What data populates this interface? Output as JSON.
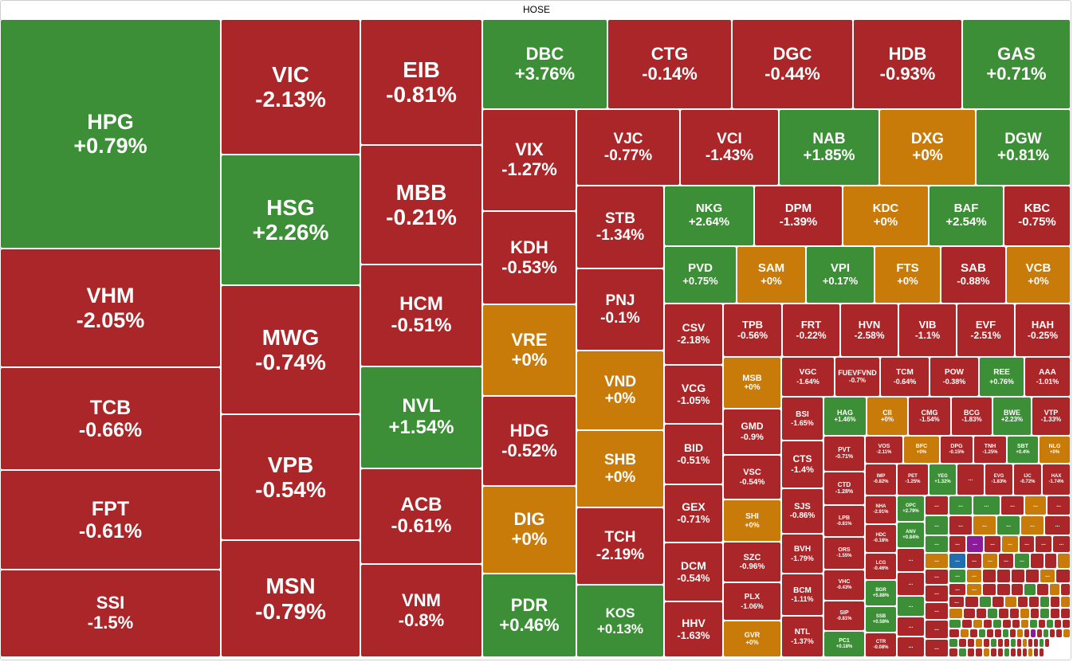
{
  "chart_data": {
    "type": "treemap",
    "title": "HOSE",
    "colors": {
      "up": "#3d8f37",
      "down": "#ab2628",
      "flat": "#c97b09",
      "ceiling": "#8a1c9a",
      "floor": "#1f6fb0"
    },
    "tiles": [
      {
        "symbol": "HPG",
        "change": "+0.79%"
      },
      {
        "symbol": "VHM",
        "change": "-2.05%"
      },
      {
        "symbol": "TCB",
        "change": "-0.66%"
      },
      {
        "symbol": "FPT",
        "change": "-0.61%"
      },
      {
        "symbol": "SSI",
        "change": "-1.5%"
      },
      {
        "symbol": "VIC",
        "change": "-2.13%"
      },
      {
        "symbol": "HSG",
        "change": "+2.26%"
      },
      {
        "symbol": "MWG",
        "change": "-0.74%"
      },
      {
        "symbol": "VPB",
        "change": "-0.54%"
      },
      {
        "symbol": "MSN",
        "change": "-0.79%"
      },
      {
        "symbol": "EIB",
        "change": "-0.81%"
      },
      {
        "symbol": "MBB",
        "change": "-0.21%"
      },
      {
        "symbol": "HCM",
        "change": "-0.51%"
      },
      {
        "symbol": "NVL",
        "change": "+1.54%"
      },
      {
        "symbol": "ACB",
        "change": "-0.61%"
      },
      {
        "symbol": "VNM",
        "change": "-0.8%"
      },
      {
        "symbol": "DBC",
        "change": "+3.76%"
      },
      {
        "symbol": "CTG",
        "change": "-0.14%"
      },
      {
        "symbol": "DGC",
        "change": "-0.44%"
      },
      {
        "symbol": "HDB",
        "change": "-0.93%"
      },
      {
        "symbol": "GAS",
        "change": "+0.71%"
      },
      {
        "symbol": "VIX",
        "change": "-1.27%"
      },
      {
        "symbol": "KDH",
        "change": "-0.53%"
      },
      {
        "symbol": "VRE",
        "change": "+0%"
      },
      {
        "symbol": "HDG",
        "change": "-0.52%"
      },
      {
        "symbol": "DIG",
        "change": "+0%"
      },
      {
        "symbol": "PDR",
        "change": "+0.46%"
      },
      {
        "symbol": "VJC",
        "change": "-0.77%"
      },
      {
        "symbol": "VCI",
        "change": "-1.43%"
      },
      {
        "symbol": "NAB",
        "change": "+1.85%"
      },
      {
        "symbol": "DXG",
        "change": "+0%"
      },
      {
        "symbol": "DGW",
        "change": "+0.81%"
      },
      {
        "symbol": "STB",
        "change": "-1.34%"
      },
      {
        "symbol": "PNJ",
        "change": "-0.1%"
      },
      {
        "symbol": "VND",
        "change": "+0%"
      },
      {
        "symbol": "SHB",
        "change": "+0%"
      },
      {
        "symbol": "TCH",
        "change": "-2.19%"
      },
      {
        "symbol": "KOS",
        "change": "+0.13%"
      },
      {
        "symbol": "NKG",
        "change": "+2.64%"
      },
      {
        "symbol": "DPM",
        "change": "-1.39%"
      },
      {
        "symbol": "KDC",
        "change": "+0%"
      },
      {
        "symbol": "BAF",
        "change": "+2.54%"
      },
      {
        "symbol": "KBC",
        "change": "-0.75%"
      },
      {
        "symbol": "PVD",
        "change": "+0.75%"
      },
      {
        "symbol": "SAM",
        "change": "+0%"
      },
      {
        "symbol": "VPI",
        "change": "+0.17%"
      },
      {
        "symbol": "FTS",
        "change": "+0%"
      },
      {
        "symbol": "SAB",
        "change": "-0.88%"
      },
      {
        "symbol": "VCB",
        "change": "+0%"
      },
      {
        "symbol": "CSV",
        "change": "-2.18%"
      },
      {
        "symbol": "TPB",
        "change": "-0.56%"
      },
      {
        "symbol": "FRT",
        "change": "-0.22%"
      },
      {
        "symbol": "HVN",
        "change": "-2.58%"
      },
      {
        "symbol": "VIB",
        "change": "-1.1%"
      },
      {
        "symbol": "EVF",
        "change": "-2.51%"
      },
      {
        "symbol": "HAH",
        "change": "-0.25%"
      },
      {
        "symbol": "VCG",
        "change": "-1.05%"
      },
      {
        "symbol": "BID",
        "change": "-0.51%"
      },
      {
        "symbol": "GEX",
        "change": "-0.71%"
      },
      {
        "symbol": "DCM",
        "change": "-0.54%"
      },
      {
        "symbol": "HHV",
        "change": "-1.63%"
      },
      {
        "symbol": "MSB",
        "change": "+0%"
      },
      {
        "symbol": "GMD",
        "change": "-0.9%"
      },
      {
        "symbol": "VSC",
        "change": "-0.54%"
      },
      {
        "symbol": "SHI",
        "change": "+0%"
      },
      {
        "symbol": "SZC",
        "change": "-0.96%"
      },
      {
        "symbol": "PLX",
        "change": "-1.06%"
      },
      {
        "symbol": "GVR",
        "change": "+0%"
      },
      {
        "symbol": "VGC",
        "change": "-1.64%"
      },
      {
        "symbol": "FUEVFVND",
        "change": "-0.7%"
      },
      {
        "symbol": "TCM",
        "change": "-0.64%"
      },
      {
        "symbol": "POW",
        "change": "-0.38%"
      },
      {
        "symbol": "REE",
        "change": "+0.76%"
      },
      {
        "symbol": "AAA",
        "change": "-1.01%"
      },
      {
        "symbol": "BSI",
        "change": "-1.65%"
      },
      {
        "symbol": "CTS",
        "change": "-1.4%"
      },
      {
        "symbol": "SJS",
        "change": "-0.86%"
      },
      {
        "symbol": "BVH",
        "change": "-1.79%"
      },
      {
        "symbol": "BCM",
        "change": "-1.11%"
      },
      {
        "symbol": "NTL",
        "change": "-1.37%"
      },
      {
        "symbol": "HAG",
        "change": "+1.46%"
      },
      {
        "symbol": "CII",
        "change": "+0%"
      },
      {
        "symbol": "CMG",
        "change": "-1.54%"
      },
      {
        "symbol": "BCG",
        "change": "-1.83%"
      },
      {
        "symbol": "BWE",
        "change": "+2.23%"
      },
      {
        "symbol": "VTP",
        "change": "-1.33%"
      },
      {
        "symbol": "PVT",
        "change": "-0.71%"
      },
      {
        "symbol": "CTD",
        "change": "-1.28%"
      },
      {
        "symbol": "LPB",
        "change": "-0.81%"
      },
      {
        "symbol": "ORS",
        "change": "-1.55%"
      },
      {
        "symbol": "VHC",
        "change": "-0.43%"
      },
      {
        "symbol": "SIP",
        "change": "-0.81%"
      },
      {
        "symbol": "PC1",
        "change": "+0.18%"
      },
      {
        "symbol": "VOS",
        "change": "-2.11%"
      },
      {
        "symbol": "BFC",
        "change": "+0%"
      },
      {
        "symbol": "DPG",
        "change": "-0.15%"
      },
      {
        "symbol": "TNH",
        "change": "-1.25%"
      },
      {
        "symbol": "SBT",
        "change": "+0.4%"
      },
      {
        "symbol": "NLG",
        "change": "+0%"
      },
      {
        "symbol": "IMP",
        "change": "-0.82%"
      },
      {
        "symbol": "PET",
        "change": "-1.25%"
      },
      {
        "symbol": "YEG",
        "change": "+1.32%"
      },
      {
        "symbol": "EVG",
        "change": "-1.83%"
      },
      {
        "symbol": "IJC",
        "change": "-0.72%"
      },
      {
        "symbol": "HAX",
        "change": "-1.74%"
      },
      {
        "symbol": "NHA",
        "change": "-2.91%"
      },
      {
        "symbol": "HDC",
        "change": "-0.18%"
      },
      {
        "symbol": "LCG",
        "change": "-0.46%"
      },
      {
        "symbol": "OPC",
        "change": "+2.79%"
      },
      {
        "symbol": "ANV",
        "change": "+0.84%"
      },
      {
        "symbol": "BGR",
        "change": "+5.88%"
      },
      {
        "symbol": "SSB",
        "change": "+0.58%"
      },
      {
        "symbol": "CTR",
        "change": "-0.08%"
      }
    ],
    "ellipsis_label": "..."
  }
}
